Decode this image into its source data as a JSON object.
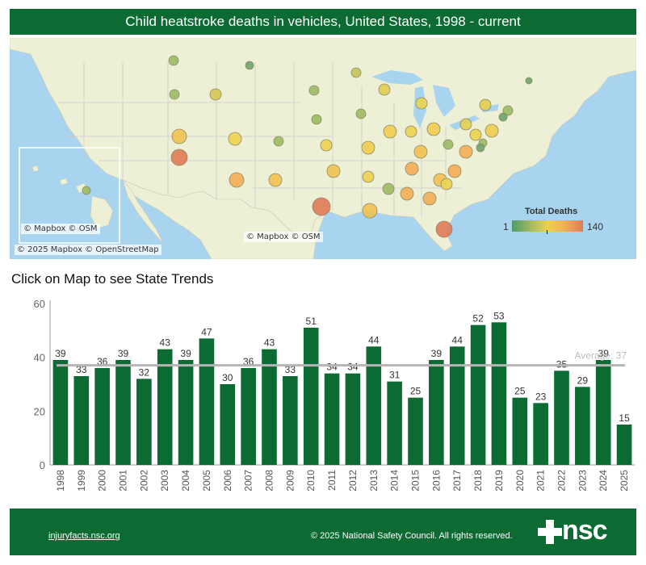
{
  "header": {
    "title": "Child heatstroke deaths in vehicles, United States, 1998 - current"
  },
  "map": {
    "credit_main": "© 2025 Mapbox © OpenStreetMap",
    "credit_inset": "© Mapbox © OSM",
    "credit_center": "© Mapbox © OSM",
    "legend": {
      "title": "Total Deaths",
      "min": "1",
      "max": "140",
      "colors": [
        "#4f9a6a",
        "#9cba62",
        "#ecd14f",
        "#f2ad55",
        "#e07a55"
      ]
    }
  },
  "section": {
    "subtitle": "Click on Map to see State Trends"
  },
  "chart_data": {
    "type": "bar",
    "categories": [
      "1998",
      "1999",
      "2000",
      "2001",
      "2002",
      "2003",
      "2004",
      "2005",
      "2006",
      "2007",
      "2008",
      "2009",
      "2010",
      "2011",
      "2012",
      "2013",
      "2014",
      "2015",
      "2016",
      "2017",
      "2018",
      "2019",
      "2020",
      "2021",
      "2022",
      "2023",
      "2024",
      "2025"
    ],
    "values": [
      39,
      33,
      36,
      39,
      32,
      43,
      39,
      47,
      30,
      36,
      43,
      33,
      51,
      34,
      34,
      44,
      31,
      25,
      39,
      44,
      52,
      53,
      25,
      23,
      35,
      29,
      39,
      15
    ],
    "yticks": [
      0,
      20,
      40,
      60
    ],
    "ylim": [
      0,
      60
    ],
    "average": 37,
    "average_label": "Average: 37",
    "bar_color": "#0c6b32",
    "average_color": "#b5b5b5"
  },
  "footer": {
    "link": "injuryfacts.nsc.org",
    "copyright": "© 2025 National Safety Council. All rights reserved.",
    "logo_text": "nsc"
  }
}
